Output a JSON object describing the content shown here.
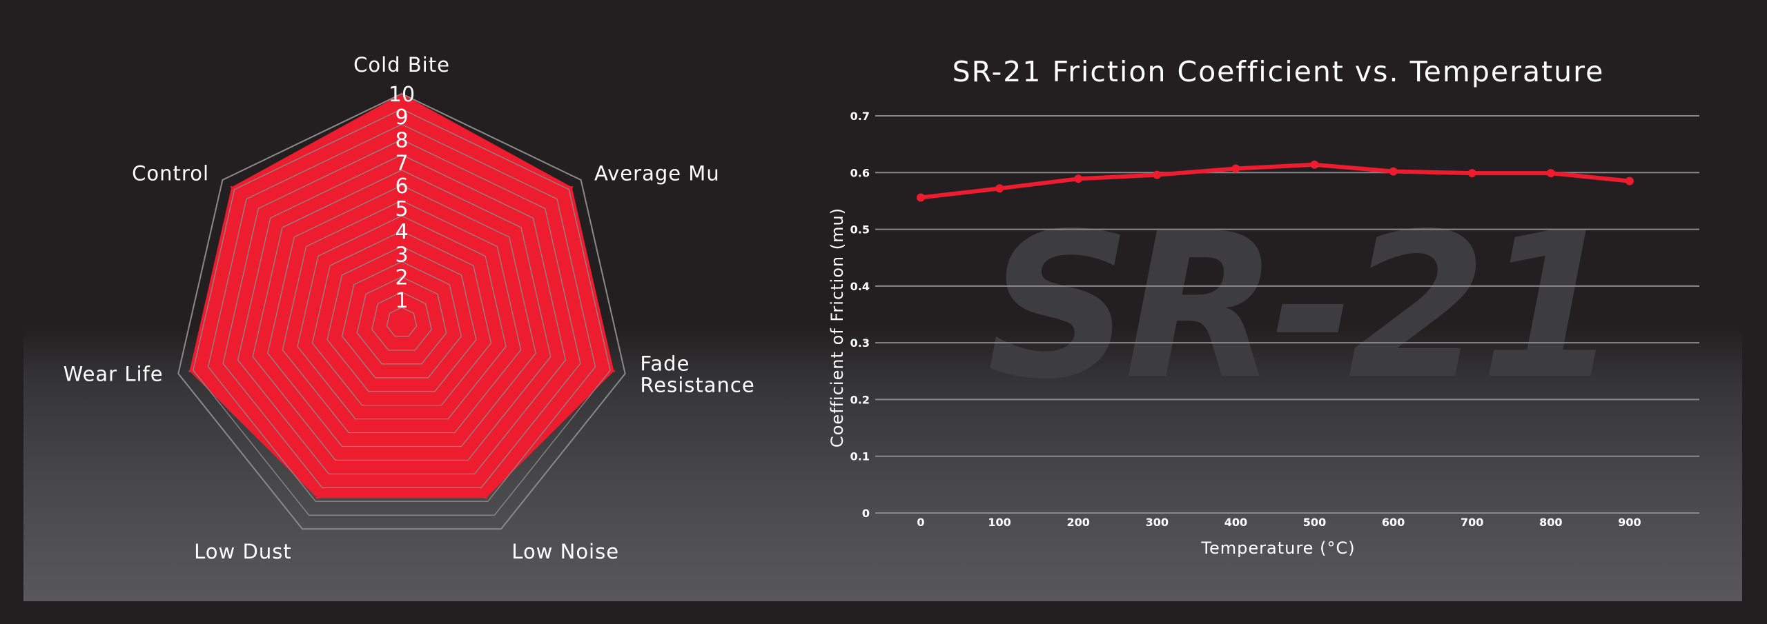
{
  "chart_data": [
    {
      "type": "radar",
      "axes": [
        "Cold Bite",
        "Average Mu",
        "Fade Resistance",
        "Low Noise",
        "Low Dust",
        "Wear Life",
        "Control"
      ],
      "axis_label_lines": [
        [
          "Cold Bite"
        ],
        [
          "Average Mu"
        ],
        [
          "Fade",
          "Resistance"
        ],
        [
          "Low Noise"
        ],
        [
          "Low Dust"
        ],
        [
          "Wear Life"
        ],
        [
          "Control"
        ]
      ],
      "scale_ticks": [
        "1",
        "2",
        "3",
        "4",
        "5",
        "6",
        "7",
        "8",
        "9",
        "10"
      ],
      "scale_max": 10,
      "values": [
        10,
        9.5,
        9.5,
        8.5,
        8.5,
        9.5,
        9.5
      ],
      "fill_color": "#ed1c2e",
      "grid_color": "#8a8a8a"
    },
    {
      "type": "line",
      "title": "SR-21 Friction Coefficient vs. Temperature",
      "xlabel": "Temperature (°C)",
      "ylabel": "Coefficient of Friction (mu)",
      "x": [
        0,
        100,
        200,
        300,
        400,
        500,
        600,
        700,
        800,
        900
      ],
      "x_tick_labels": [
        "0",
        "100",
        "200",
        "300",
        "400",
        "500",
        "600",
        "700",
        "800",
        "900"
      ],
      "series": [
        {
          "values": [
            0.556,
            0.572,
            0.589,
            0.596,
            0.607,
            0.614,
            0.602,
            0.599,
            0.599,
            0.585
          ],
          "color": "#ed1c2e"
        }
      ],
      "yticks": [
        "0",
        "0.1",
        "0.2",
        "0.3",
        "0.4",
        "0.5",
        "0.6",
        "0.7"
      ],
      "ylim": [
        0,
        0.7
      ],
      "grid": true,
      "watermark": "SR-21",
      "grid_color": "#8a8a8a"
    }
  ]
}
